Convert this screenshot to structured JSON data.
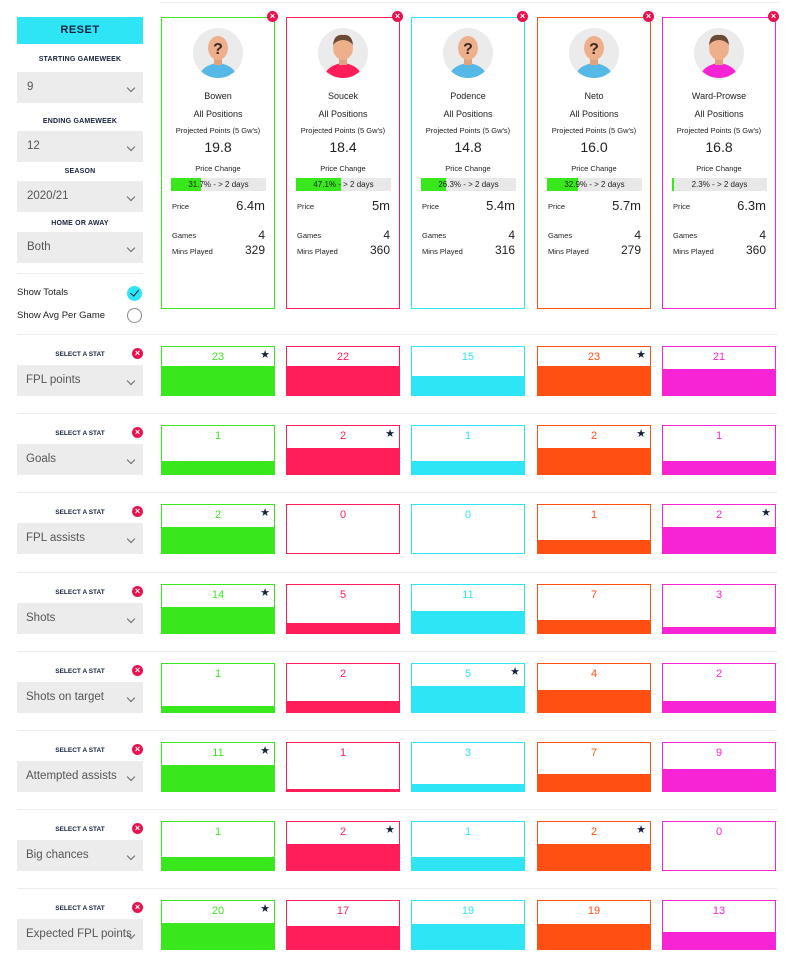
{
  "sidebar": {
    "reset_label": "RESET",
    "starting_caption": "STARTING GAMEWEEK",
    "starting_value": "9",
    "ending_caption": "ENDING GAMEWEEK",
    "ending_value": "12",
    "season_caption": "SEASON",
    "season_value": "2020/21",
    "homeaway_caption": "HOME OR AWAY",
    "homeaway_value": "Both",
    "show_totals_label": "Show Totals",
    "show_totals_checked": true,
    "show_avg_label": "Show Avg Per Game",
    "show_avg_checked": false
  },
  "labels": {
    "all_positions": "All Positions",
    "projected_points": "Projected Points (5 Gw's)",
    "price_change": "Price Change",
    "price": "Price",
    "games": "Games",
    "mins_played": "Mins Played",
    "select_a_stat": "SELECT A STAT",
    "close_glyph": "×",
    "star_glyph": "★"
  },
  "players": [
    {
      "name": "Bowen",
      "avatar": "unknown-avatar",
      "projected": "19.8",
      "price_change_text": "31.7% - > 2 days",
      "price_change_pct": 31.7,
      "price": "6.4m",
      "games": "4",
      "mins": "329",
      "color": "#39e81c"
    },
    {
      "name": "Soucek",
      "avatar": "player-avatar",
      "projected": "18.4",
      "price_change_text": "47.1% - > 2 days",
      "price_change_pct": 47.1,
      "price": "5m",
      "games": "4",
      "mins": "360",
      "color": "#ff1e5a"
    },
    {
      "name": "Podence",
      "avatar": "unknown-avatar",
      "projected": "14.8",
      "price_change_text": "26.3% - > 2 days",
      "price_change_pct": 26.3,
      "price": "5.4m",
      "games": "4",
      "mins": "316",
      "color": "#2ee5f6"
    },
    {
      "name": "Neto",
      "avatar": "unknown-avatar",
      "projected": "16.0",
      "price_change_text": "32.9% - > 2 days",
      "price_change_pct": 32.9,
      "price": "5.7m",
      "games": "4",
      "mins": "279",
      "color": "#ff4f12"
    },
    {
      "name": "Ward-Prowse",
      "avatar": "player-avatar",
      "projected": "16.8",
      "price_change_text": "2.3% - > 2 days",
      "price_change_pct": 2.3,
      "price": "6.3m",
      "games": "4",
      "mins": "360",
      "color": "#f724d6"
    }
  ],
  "stats": [
    {
      "label": "FPL points",
      "values": [
        "23",
        "22",
        "15",
        "23",
        "21"
      ],
      "fill": [
        0.6,
        0.6,
        0.4,
        0.6,
        0.55
      ],
      "star": [
        true,
        false,
        false,
        true,
        false
      ]
    },
    {
      "label": "Goals",
      "values": [
        "1",
        "2",
        "1",
        "2",
        "1"
      ],
      "fill": [
        0.28,
        0.55,
        0.28,
        0.55,
        0.28
      ],
      "star": [
        false,
        true,
        false,
        true,
        false
      ]
    },
    {
      "label": "FPL assists",
      "values": [
        "2",
        "0",
        "0",
        "1",
        "2"
      ],
      "fill": [
        0.55,
        0,
        0,
        0.28,
        0.55
      ],
      "star": [
        true,
        false,
        false,
        false,
        true
      ]
    },
    {
      "label": "Shots",
      "values": [
        "14",
        "5",
        "11",
        "7",
        "3"
      ],
      "fill": [
        0.55,
        0.2,
        0.45,
        0.28,
        0.12
      ],
      "star": [
        true,
        false,
        false,
        false,
        false
      ]
    },
    {
      "label": "Shots on target",
      "values": [
        "1",
        "2",
        "5",
        "4",
        "2"
      ],
      "fill": [
        0.12,
        0.22,
        0.55,
        0.45,
        0.22
      ],
      "star": [
        false,
        false,
        true,
        false,
        false
      ]
    },
    {
      "label": "Attempted assists",
      "values": [
        "11",
        "1",
        "3",
        "7",
        "9"
      ],
      "fill": [
        0.55,
        0.05,
        0.15,
        0.35,
        0.45
      ],
      "star": [
        true,
        false,
        false,
        false,
        false
      ]
    },
    {
      "label": "Big chances",
      "values": [
        "1",
        "2",
        "1",
        "2",
        "0"
      ],
      "fill": [
        0.28,
        0.55,
        0.28,
        0.55,
        0
      ],
      "star": [
        false,
        true,
        false,
        true,
        false
      ]
    },
    {
      "label": "Expected FPL points",
      "values": [
        "20",
        "17",
        "19",
        "19",
        "13"
      ],
      "fill": [
        0.55,
        0.47,
        0.52,
        0.52,
        0.36
      ],
      "star": [
        true,
        false,
        false,
        false,
        false
      ]
    }
  ]
}
